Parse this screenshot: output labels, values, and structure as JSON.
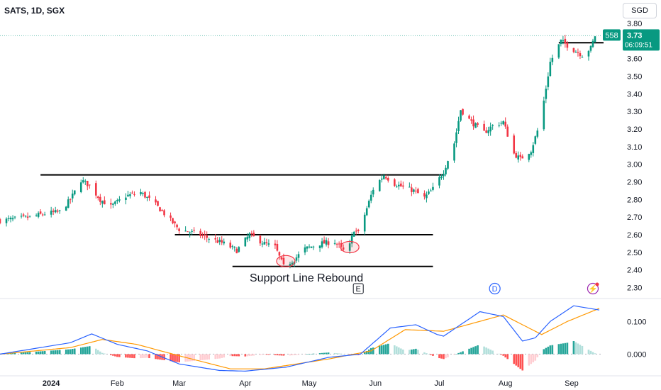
{
  "header": {
    "symbol_line": "SATS, 1D, SGX"
  },
  "currency_label": "SGD",
  "price_tag": {
    "volume_badge": "558",
    "last_price": "3.73",
    "countdown": "06:09:51",
    "color": "#089981"
  },
  "annotation": {
    "text": "Support Line Rebound"
  },
  "event_markers": [
    {
      "label": "E",
      "kind": "earnings"
    },
    {
      "label": "D",
      "kind": "dividend"
    },
    {
      "label": "⚡",
      "kind": "flash"
    }
  ],
  "colors": {
    "up": "#089981",
    "down": "#f23645",
    "macd_line": "#2962ff",
    "signal_line": "#ff9800",
    "hist_up_strong": "#26a69a",
    "hist_up_weak": "#b2dfdb",
    "hist_down_strong": "#ff5252",
    "hist_down_weak": "#ffcdd2",
    "trendline": "#000000",
    "circle": "#f23645"
  },
  "chart_data": [
    {
      "type": "candlestick",
      "title": "SATS, 1D, SGX",
      "x_axis": {
        "type": "date",
        "tick_labels": [
          "2024",
          "Feb",
          "Mar",
          "Apr",
          "May",
          "Jun",
          "Jul",
          "Aug",
          "Sep"
        ],
        "tick_dates": [
          "2024-01-01",
          "2024-02-01",
          "2024-03-01",
          "2024-04-01",
          "2024-05-01",
          "2024-06-01",
          "2024-07-01",
          "2024-08-01",
          "2024-09-01"
        ],
        "range": [
          "2023-12-08",
          "2024-09-14"
        ]
      },
      "y_axis": {
        "unit": "SGD",
        "range": [
          2.25,
          3.82
        ],
        "tick_labels": [
          "2.30",
          "2.40",
          "2.50",
          "2.60",
          "2.70",
          "2.80",
          "2.90",
          "3.00",
          "3.10",
          "3.20",
          "3.30",
          "3.40",
          "3.50",
          "3.60",
          "3.70",
          "3.80"
        ],
        "ticks": [
          2.3,
          2.4,
          2.5,
          2.6,
          2.7,
          2.8,
          2.9,
          3.0,
          3.1,
          3.2,
          3.3,
          3.4,
          3.5,
          3.6,
          3.7,
          3.8
        ]
      },
      "grid": false,
      "close_keypoints": [
        [
          "2023-12-08",
          2.68
        ],
        [
          "2023-12-15",
          2.69
        ],
        [
          "2023-12-22",
          2.7
        ],
        [
          "2023-12-29",
          2.72
        ],
        [
          "2024-01-05",
          2.73
        ],
        [
          "2024-01-10",
          2.8
        ],
        [
          "2024-01-15",
          2.91
        ],
        [
          "2024-01-19",
          2.88
        ],
        [
          "2024-01-24",
          2.8
        ],
        [
          "2024-01-29",
          2.76
        ],
        [
          "2024-02-05",
          2.82
        ],
        [
          "2024-02-12",
          2.84
        ],
        [
          "2024-02-19",
          2.77
        ],
        [
          "2024-02-23",
          2.72
        ],
        [
          "2024-03-01",
          2.63
        ],
        [
          "2024-03-08",
          2.61
        ],
        [
          "2024-03-15",
          2.58
        ],
        [
          "2024-03-22",
          2.55
        ],
        [
          "2024-03-28",
          2.51
        ],
        [
          "2024-04-03",
          2.6
        ],
        [
          "2024-04-10",
          2.55
        ],
        [
          "2024-04-15",
          2.53
        ],
        [
          "2024-04-19",
          2.42
        ],
        [
          "2024-04-24",
          2.46
        ],
        [
          "2024-04-29",
          2.52
        ],
        [
          "2024-05-06",
          2.55
        ],
        [
          "2024-05-13",
          2.56
        ],
        [
          "2024-05-17",
          2.51
        ],
        [
          "2024-05-20",
          2.54
        ],
        [
          "2024-05-22",
          2.63
        ],
        [
          "2024-05-24",
          2.61
        ],
        [
          "2024-05-28",
          2.75
        ],
        [
          "2024-05-31",
          2.86
        ],
        [
          "2024-06-05",
          2.94
        ],
        [
          "2024-06-10",
          2.89
        ],
        [
          "2024-06-14",
          2.87
        ],
        [
          "2024-06-19",
          2.85
        ],
        [
          "2024-06-24",
          2.81
        ],
        [
          "2024-06-28",
          2.86
        ],
        [
          "2024-07-03",
          2.96
        ],
        [
          "2024-07-08",
          3.12
        ],
        [
          "2024-07-11",
          3.31
        ],
        [
          "2024-07-16",
          3.24
        ],
        [
          "2024-07-22",
          3.18
        ],
        [
          "2024-07-26",
          3.22
        ],
        [
          "2024-07-31",
          3.24
        ],
        [
          "2024-08-05",
          3.06
        ],
        [
          "2024-08-08",
          3.03
        ],
        [
          "2024-08-13",
          3.08
        ],
        [
          "2024-08-16",
          3.19
        ],
        [
          "2024-08-19",
          3.36
        ],
        [
          "2024-08-22",
          3.58
        ],
        [
          "2024-08-27",
          3.7
        ],
        [
          "2024-09-02",
          3.65
        ],
        [
          "2024-09-06",
          3.62
        ],
        [
          "2024-09-10",
          3.66
        ],
        [
          "2024-09-12",
          3.73
        ]
      ],
      "trendlines": [
        {
          "name": "resistance",
          "points": [
            [
              "2023-12-27",
              2.94
            ],
            [
              "2024-07-03",
              2.94
            ]
          ]
        },
        {
          "name": "mid-support",
          "points": [
            [
              "2024-02-28",
              2.6
            ],
            [
              "2024-06-28",
              2.6
            ]
          ]
        },
        {
          "name": "support",
          "points": [
            [
              "2024-03-26",
              2.42
            ],
            [
              "2024-06-28",
              2.42
            ]
          ]
        },
        {
          "name": "top",
          "points": [
            [
              "2024-08-26",
              3.69
            ],
            [
              "2024-09-16",
              3.69
            ]
          ]
        }
      ],
      "highlight_circles": [
        {
          "date": "2024-04-20",
          "price": 2.45
        },
        {
          "date": "2024-05-20",
          "price": 2.53
        }
      ],
      "last_price": 3.73
    },
    {
      "type": "line",
      "name_hidden": true,
      "y_axis": {
        "tick_labels": [
          "0.100",
          "0.000"
        ],
        "ticks": [
          0.1,
          0.0
        ],
        "range": [
          -0.062,
          0.155
        ]
      },
      "series": [
        {
          "role": "macd",
          "points": [
            [
              "2023-12-08",
              0.0
            ],
            [
              "2024-01-10",
              0.035
            ],
            [
              "2024-01-20",
              0.062
            ],
            [
              "2024-02-01",
              0.03
            ],
            [
              "2024-02-15",
              0.01
            ],
            [
              "2024-03-01",
              -0.03
            ],
            [
              "2024-03-20",
              -0.05
            ],
            [
              "2024-04-01",
              -0.052
            ],
            [
              "2024-04-20",
              -0.04
            ],
            [
              "2024-05-10",
              -0.01
            ],
            [
              "2024-05-25",
              0.0
            ],
            [
              "2024-06-08",
              0.08
            ],
            [
              "2024-06-20",
              0.09
            ],
            [
              "2024-06-30",
              0.06
            ],
            [
              "2024-07-03",
              0.055
            ],
            [
              "2024-07-20",
              0.13
            ],
            [
              "2024-07-31",
              0.115
            ],
            [
              "2024-08-09",
              0.04
            ],
            [
              "2024-08-15",
              0.05
            ],
            [
              "2024-08-22",
              0.1
            ],
            [
              "2024-09-02",
              0.148
            ],
            [
              "2024-09-14",
              0.135
            ]
          ]
        },
        {
          "role": "signal",
          "points": [
            [
              "2023-12-08",
              0.0
            ],
            [
              "2024-01-10",
              0.02
            ],
            [
              "2024-01-25",
              0.045
            ],
            [
              "2024-02-10",
              0.03
            ],
            [
              "2024-03-01",
              -0.005
            ],
            [
              "2024-03-25",
              -0.045
            ],
            [
              "2024-04-10",
              -0.045
            ],
            [
              "2024-05-10",
              -0.015
            ],
            [
              "2024-05-30",
              0.01
            ],
            [
              "2024-06-15",
              0.075
            ],
            [
              "2024-07-03",
              0.07
            ],
            [
              "2024-07-31",
              0.12
            ],
            [
              "2024-08-09",
              0.09
            ],
            [
              "2024-08-18",
              0.06
            ],
            [
              "2024-08-30",
              0.1
            ],
            [
              "2024-09-14",
              0.14
            ]
          ]
        }
      ]
    }
  ]
}
